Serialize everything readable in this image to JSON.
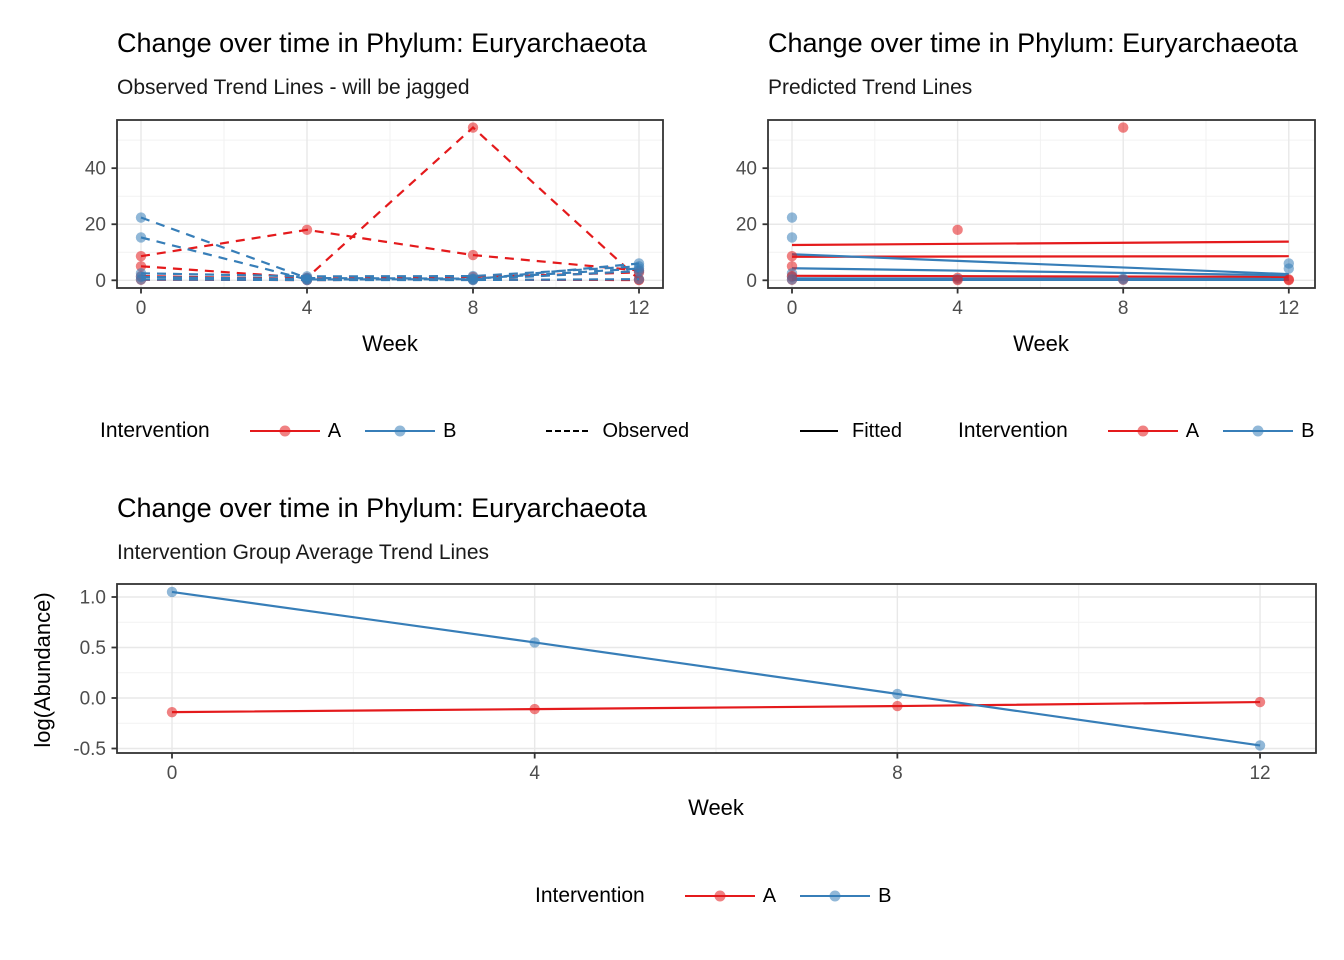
{
  "palette": {
    "red": "#E41A1C",
    "blue": "#377EB8",
    "point_alpha": 0.55,
    "grid_major": "#E8E8E8",
    "grid_minor": "#F2F2F2",
    "panel_border": "#333333",
    "tick_text": "#4D4D4D",
    "black": "#000000"
  },
  "legends": {
    "left": {
      "title": "Intervention",
      "items": [
        {
          "label": "A",
          "color": "red"
        },
        {
          "label": "B",
          "color": "blue"
        }
      ],
      "observed_label": "Observed"
    },
    "right": {
      "fitted_label": "Fitted",
      "title": "Intervention",
      "items": [
        {
          "label": "A",
          "color": "red"
        },
        {
          "label": "B",
          "color": "blue"
        }
      ]
    },
    "bottom": {
      "title": "Intervention",
      "items": [
        {
          "label": "A",
          "color": "red"
        },
        {
          "label": "B",
          "color": "blue"
        }
      ]
    }
  },
  "chart_data": [
    {
      "id": "observed",
      "type": "line",
      "title": "Change over time in Phylum: Euryarchaeota",
      "subtitle": "Observed Trend Lines - will be jagged",
      "xlabel": "Week",
      "ylabel": "",
      "x": [
        0,
        4,
        8,
        12
      ],
      "xlim": [
        -0.6,
        12.6
      ],
      "ylim": [
        -2.7,
        57.2
      ],
      "grid": {
        "x_major": [
          0,
          4,
          8,
          12
        ],
        "x_minor": [
          2,
          6,
          10
        ],
        "y_major": [
          0,
          20,
          40
        ],
        "y_minor": [
          10,
          30,
          50
        ]
      },
      "x_ticks": [
        {
          "v": 0,
          "label": "0"
        },
        {
          "v": 4,
          "label": "4"
        },
        {
          "v": 8,
          "label": "8"
        },
        {
          "v": 12,
          "label": "12"
        }
      ],
      "y_ticks": [
        {
          "v": 0,
          "label": "0"
        },
        {
          "v": 20,
          "label": "20"
        },
        {
          "v": 40,
          "label": "40"
        }
      ],
      "line_style": "dashed",
      "series": [
        {
          "group": "A",
          "markers": true,
          "values": [
            8.6,
            18,
            9,
            3.5
          ]
        },
        {
          "group": "A",
          "markers": true,
          "values": [
            5.0,
            0.9,
            54.5,
            0.3
          ]
        },
        {
          "group": "A",
          "markers": true,
          "values": [
            1.5,
            0.5,
            1.2,
            2.8
          ]
        },
        {
          "group": "A",
          "markers": true,
          "values": [
            0.2,
            0.1,
            0.2,
            0.1
          ]
        },
        {
          "group": "B",
          "markers": true,
          "values": [
            22.4,
            0.8,
            0.6,
            4.2
          ]
        },
        {
          "group": "B",
          "markers": true,
          "values": [
            15.3,
            0.3,
            0.4,
            6.0
          ]
        },
        {
          "group": "B",
          "markers": true,
          "values": [
            2.5,
            1.4,
            1.5,
            5.0
          ]
        },
        {
          "group": "B",
          "markers": true,
          "values": [
            1.2,
            0.4,
            0.3,
            3.3
          ]
        },
        {
          "group": "B",
          "markers": true,
          "values": [
            0.3,
            0.1,
            0.1,
            0.4
          ]
        }
      ]
    },
    {
      "id": "predicted",
      "type": "line",
      "title": "Change over time in Phylum: Euryarchaeota",
      "subtitle": "Predicted Trend Lines",
      "xlabel": "Week",
      "ylabel": "",
      "x": [
        0,
        12
      ],
      "xlim": [
        -0.6,
        12.6
      ],
      "ylim": [
        -2.7,
        57.2
      ],
      "grid": {
        "x_major": [
          0,
          4,
          8,
          12
        ],
        "x_minor": [
          2,
          6,
          10
        ],
        "y_major": [
          0,
          20,
          40
        ],
        "y_minor": [
          10,
          30,
          50
        ]
      },
      "x_ticks": [
        {
          "v": 0,
          "label": "0"
        },
        {
          "v": 4,
          "label": "4"
        },
        {
          "v": 8,
          "label": "8"
        },
        {
          "v": 12,
          "label": "12"
        }
      ],
      "y_ticks": [
        {
          "v": 0,
          "label": "0"
        },
        {
          "v": 20,
          "label": "20"
        },
        {
          "v": 40,
          "label": "40"
        }
      ],
      "line_style": "solid",
      "series": [
        {
          "group": "A",
          "markers": false,
          "values": [
            12.6,
            13.8
          ]
        },
        {
          "group": "A",
          "markers": false,
          "values": [
            8.4,
            8.6
          ]
        },
        {
          "group": "A",
          "markers": false,
          "values": [
            1.6,
            1.2
          ]
        },
        {
          "group": "A",
          "markers": false,
          "values": [
            0.3,
            0.2
          ]
        },
        {
          "group": "B",
          "markers": false,
          "values": [
            9.3,
            2.2
          ]
        },
        {
          "group": "B",
          "markers": false,
          "values": [
            4.3,
            1.8
          ]
        },
        {
          "group": "B",
          "markers": false,
          "values": [
            0.7,
            0.5
          ]
        },
        {
          "group": "B",
          "markers": false,
          "values": [
            0.15,
            0.15
          ]
        }
      ],
      "points": [
        {
          "group": "B",
          "x": 0,
          "y": 22.4
        },
        {
          "group": "B",
          "x": 0,
          "y": 15.3
        },
        {
          "group": "A",
          "x": 0,
          "y": 8.6
        },
        {
          "group": "A",
          "x": 0,
          "y": 5.0
        },
        {
          "group": "B",
          "x": 0,
          "y": 2.5
        },
        {
          "group": "B",
          "x": 0,
          "y": 1.2
        },
        {
          "group": "A",
          "x": 0,
          "y": 1.5
        },
        {
          "group": "A",
          "x": 0,
          "y": 0.2
        },
        {
          "group": "B",
          "x": 0,
          "y": 0.3
        },
        {
          "group": "A",
          "x": 4,
          "y": 18
        },
        {
          "group": "A",
          "x": 4,
          "y": 0.9
        },
        {
          "group": "B",
          "x": 4,
          "y": 0.4
        },
        {
          "group": "A",
          "x": 4,
          "y": 0.1
        },
        {
          "group": "A",
          "x": 8,
          "y": 54.5
        },
        {
          "group": "B",
          "x": 8,
          "y": 0.6
        },
        {
          "group": "A",
          "x": 8,
          "y": 0.2
        },
        {
          "group": "B",
          "x": 8,
          "y": 0.3
        },
        {
          "group": "B",
          "x": 12,
          "y": 6.0
        },
        {
          "group": "B",
          "x": 12,
          "y": 4.2
        },
        {
          "group": "A",
          "x": 12,
          "y": 0.3
        },
        {
          "group": "A",
          "x": 12,
          "y": 0.1
        }
      ]
    },
    {
      "id": "average",
      "type": "line",
      "title": "Change over time in Phylum: Euryarchaeota",
      "subtitle": "Intervention Group Average Trend Lines",
      "xlabel": "Week",
      "ylabel": "log(Abundance)",
      "x": [
        0,
        4,
        8,
        12
      ],
      "xlim": [
        -0.6,
        12.6
      ],
      "ylim": [
        -0.55,
        1.13
      ],
      "grid": {
        "x_major": [
          0,
          4,
          8,
          12
        ],
        "x_minor": [
          2,
          6,
          10
        ],
        "y_major": [
          1.0,
          0.5,
          0.0,
          -0.5
        ],
        "y_minor": [
          0.75,
          0.25,
          -0.25
        ]
      },
      "x_ticks": [
        {
          "v": 0,
          "label": "0"
        },
        {
          "v": 4,
          "label": "4"
        },
        {
          "v": 8,
          "label": "8"
        },
        {
          "v": 12,
          "label": "12"
        }
      ],
      "y_ticks": [
        {
          "v": 1.0,
          "label": "1.0"
        },
        {
          "v": 0.5,
          "label": "0.5"
        },
        {
          "v": 0.0,
          "label": "0.0"
        },
        {
          "v": -0.5,
          "label": "-0.5"
        }
      ],
      "line_style": "solid",
      "series": [
        {
          "group": "A",
          "markers": true,
          "values": [
            -0.14,
            -0.11,
            -0.08,
            -0.04
          ]
        },
        {
          "group": "B",
          "markers": true,
          "values": [
            1.05,
            0.55,
            0.04,
            -0.47
          ]
        }
      ]
    }
  ]
}
